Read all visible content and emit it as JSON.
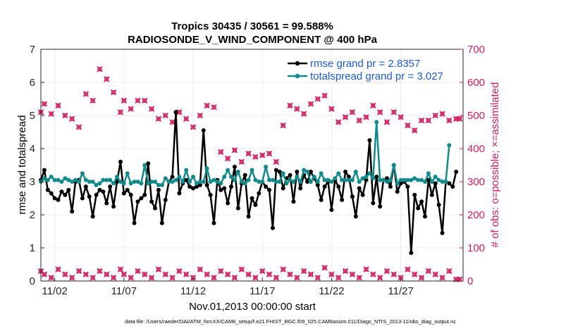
{
  "chart_data": {
    "type": "line",
    "title": "Tropics 30435 / 30561 = 99.588%",
    "subtitle": "RADIOSONDE_V_WIND_COMPONENT @ 400 hPa",
    "xlabel": "Nov.01,2013 00:00:00 start",
    "ylabel_left": "rmse and totalspread",
    "ylabel_right": "# of obs: o=possible; ×=assimilated",
    "ylim_left": [
      0,
      7
    ],
    "ylim_right": [
      0,
      700
    ],
    "xlim": [
      1,
      31.5
    ],
    "left_ticks": [
      "0",
      "1",
      "2",
      "3",
      "4",
      "5",
      "6",
      "7"
    ],
    "right_ticks": [
      "0",
      "100",
      "200",
      "300",
      "400",
      "500",
      "600",
      "700"
    ],
    "x_ticks": [
      {
        "value": 2,
        "label": "11/02"
      },
      {
        "value": 7,
        "label": "11/07"
      },
      {
        "value": 12,
        "label": "11/12"
      },
      {
        "value": 17,
        "label": "11/17"
      },
      {
        "value": 22,
        "label": "11/22"
      },
      {
        "value": 27,
        "label": "11/27"
      }
    ],
    "grid": true,
    "legend_position": "top-right",
    "footer": "data file: /Users/raeder/DAI/ATM_forcXX/CAM6_setup/f.e21.FHIST_BGC.f09_025.CAM6assim.011/Diags_NTrS_2013-11/obs_diag_output.nc",
    "colors": {
      "rmse": "#000000",
      "spread": "#138a8a",
      "obs": "#d01c5b",
      "legend_text": "#1f5bd6",
      "grid": "#ececec"
    },
    "series": [
      {
        "name": "rmse grand pr = 2.8357",
        "values": [
          3.05,
          3.35,
          2.75,
          2.65,
          2.5,
          2.45,
          2.7,
          2.6,
          2.75,
          2.1,
          3.0,
          3.05,
          2.5,
          2.85,
          2.55,
          1.95,
          2.6,
          2.75,
          2.7,
          2.35,
          2.85,
          2.25,
          3.0,
          3.6,
          2.65,
          2.75,
          2.6,
          1.75,
          2.4,
          2.5,
          2.6,
          3.55,
          2.4,
          2.2,
          2.75,
          1.75,
          2.45,
          3.0,
          3.15,
          5.1,
          2.65,
          2.95,
          3.05,
          2.85,
          2.8,
          2.85,
          2.9,
          4.55,
          2.9,
          2.6,
          1.75,
          3.05,
          2.75,
          2.8,
          2.35,
          2.85,
          3.45,
          2.2,
          2.95,
          3.2,
          1.95,
          2.5,
          2.3,
          2.65,
          3.0,
          2.85,
          2.75,
          1.6,
          3.35,
          3.3,
          2.8,
          3.1,
          3.2,
          2.4,
          3.3,
          2.8,
          3.2,
          3.0,
          3.3,
          3.1,
          2.9,
          2.45,
          2.85,
          3.0,
          2.15,
          3.05,
          2.85,
          2.45,
          3.3,
          3.15,
          2.55,
          1.95,
          2.8,
          2.6,
          3.05,
          4.25,
          2.35,
          3.15,
          2.25,
          3.05,
          3.1,
          2.85,
          3.5,
          2.7,
          2.95,
          3.0,
          2.85,
          0.85,
          2.6,
          2.2,
          2.4,
          1.95,
          3.05,
          2.6,
          2.95,
          2.3,
          1.45,
          3.0,
          2.95,
          2.85,
          3.3
        ]
      },
      {
        "name": "totalspread grand pr = 3.027",
        "values": [
          3.0,
          3.1,
          3.05,
          3.15,
          3.05,
          3.05,
          3.0,
          3.1,
          3.05,
          3.0,
          3.05,
          3.0,
          3.25,
          3.05,
          3.0,
          3.0,
          2.9,
          2.95,
          3.05,
          3.05,
          3.05,
          2.95,
          3.15,
          3.0,
          2.95,
          3.25,
          2.95,
          3.0,
          3.0,
          2.95,
          3.5,
          2.95,
          3.0,
          3.0,
          2.9,
          2.9,
          3.1,
          3.0,
          3.0,
          3.05,
          3.15,
          3.0,
          3.35,
          3.0,
          3.15,
          2.95,
          3.0,
          3.0,
          3.4,
          3.0,
          3.05,
          3.0,
          2.95,
          3.15,
          3.35,
          3.15,
          3.05,
          3.3,
          3.0,
          2.95,
          3.05,
          3.35,
          3.05,
          3.0,
          3.0,
          3.45,
          3.05,
          3.05,
          3.0,
          3.0,
          3.25,
          2.95,
          3.05,
          3.0,
          3.15,
          3.0,
          3.35,
          3.3,
          3.0,
          3.15,
          3.0,
          3.25,
          3.05,
          3.05,
          3.0,
          3.1,
          3.25,
          3.05,
          3.05,
          3.05,
          3.05,
          3.3,
          3.0,
          3.1,
          3.15,
          3.25,
          3.1,
          4.8,
          3.05,
          3.05,
          3.0,
          3.05,
          3.5,
          2.95,
          3.05,
          3.05,
          3.05,
          3.05,
          3.1,
          3.05,
          3.05,
          3.0,
          3.25,
          3.0,
          3.15,
          3.05,
          3.0,
          3.0,
          4.1
        ]
      }
    ],
    "obs_possible": {
      "x": [
        1,
        1.25,
        1.75,
        2.25,
        2.75,
        3.25,
        3.75,
        4.25,
        4.75,
        5.25,
        5.75,
        6.25,
        6.75,
        7.0,
        7.5,
        8.0,
        8.5,
        9.0,
        9.5,
        10.0,
        10.5,
        11.0,
        11.5,
        12.0,
        12.5,
        13.0,
        13.5,
        14.0,
        14.5,
        15.0,
        15.5,
        16.0,
        16.5,
        17.0,
        17.5,
        18.0,
        18.5,
        19.0,
        19.5,
        20.0,
        20.5,
        21.0,
        21.5,
        22.0,
        22.5,
        23.0,
        23.5,
        24.0,
        24.5,
        25.0,
        25.5,
        26.0,
        26.5,
        27.0,
        27.5,
        28.0,
        28.5,
        29.0,
        29.5,
        30.0,
        30.5,
        31.0,
        31.25
      ],
      "y": [
        510,
        535,
        505,
        530,
        500,
        490,
        465,
        565,
        545,
        640,
        610,
        570,
        510,
        545,
        520,
        545,
        545,
        520,
        490,
        500,
        480,
        510,
        490,
        465,
        500,
        530,
        525,
        390,
        370,
        395,
        360,
        385,
        375,
        380,
        385,
        360,
        470,
        530,
        520,
        505,
        535,
        550,
        560,
        520,
        480,
        495,
        510,
        485,
        495,
        530,
        510,
        480,
        510,
        495,
        470,
        455,
        485,
        485,
        500,
        505,
        485,
        490,
        490
      ]
    },
    "obs_assimilated": {
      "x": [
        1,
        1.25,
        1.75,
        2.25,
        2.75,
        3.25,
        3.75,
        4.25,
        4.75,
        5.25,
        5.75,
        6.25,
        6.75,
        7.0,
        7.5,
        8.0,
        8.5,
        9.0,
        9.5,
        10.0,
        10.5,
        11.0,
        11.5,
        12.0,
        12.5,
        13.0,
        13.5,
        14.0,
        14.5,
        15.0,
        15.5,
        16.0,
        16.5,
        17.0,
        17.5,
        18.0,
        18.5,
        19.0,
        19.5,
        20.0,
        20.5,
        21.0,
        21.5,
        22.0,
        22.5,
        23.0,
        23.5,
        24.0,
        24.5,
        25.0,
        25.5,
        26.0,
        26.5,
        27.0,
        27.5,
        28.0,
        28.5,
        29.0,
        29.5,
        30.0,
        30.5,
        31.0,
        31.25
      ],
      "y": [
        30,
        20,
        10,
        35,
        20,
        10,
        30,
        20,
        10,
        30,
        20,
        10,
        35,
        20,
        10,
        30,
        20,
        10,
        35,
        20,
        10,
        30,
        20,
        10,
        35,
        20,
        10,
        30,
        20,
        10,
        35,
        20,
        10,
        30,
        20,
        10,
        35,
        20,
        10,
        30,
        20,
        10,
        40,
        20,
        10,
        30,
        20,
        10,
        35,
        20,
        10,
        30,
        20,
        10,
        35,
        20,
        10,
        30,
        20,
        10,
        30,
        5,
        5
      ]
    }
  }
}
